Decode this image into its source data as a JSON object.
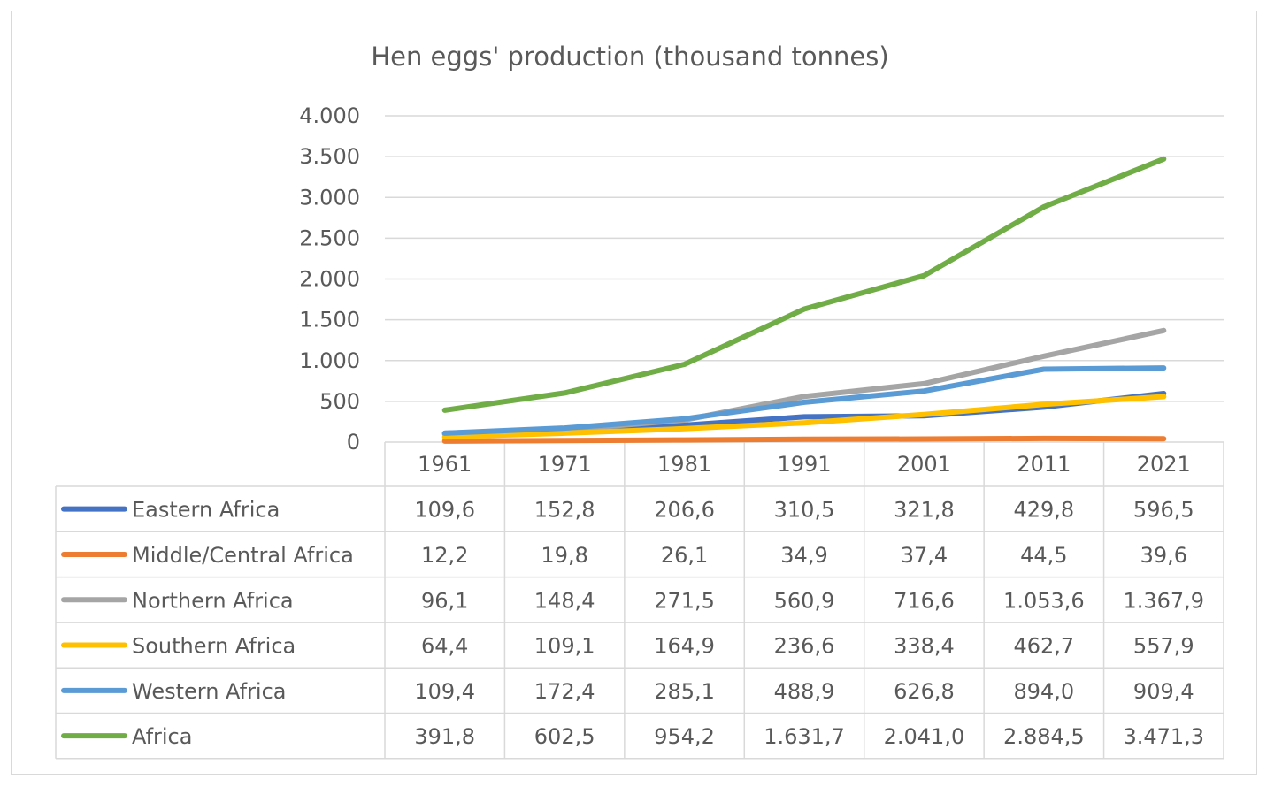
{
  "chart_data": {
    "type": "line",
    "title": "Hen eggs' production (thousand tonnes)",
    "categories": [
      "1961",
      "1971",
      "1981",
      "1991",
      "2001",
      "2011",
      "2021"
    ],
    "ylim": [
      0,
      4000
    ],
    "yticks": [
      0,
      500,
      1000,
      1500,
      2000,
      2500,
      3000,
      3500,
      4000
    ],
    "ytick_labels": [
      "0",
      "500",
      "1.000",
      "1.500",
      "2.000",
      "2.500",
      "3.000",
      "3.500",
      "4.000"
    ],
    "grid": true,
    "legend": "data table below chart",
    "series": [
      {
        "name": "Eastern Africa",
        "color": "#4472c4",
        "values": [
          109.6,
          152.8,
          206.6,
          310.5,
          321.8,
          429.8,
          596.5
        ],
        "labels": [
          "109,6",
          "152,8",
          "206,6",
          "310,5",
          "321,8",
          "429,8",
          "596,5"
        ]
      },
      {
        "name": "Middle/Central Africa",
        "color": "#ed7d31",
        "values": [
          12.2,
          19.8,
          26.1,
          34.9,
          37.4,
          44.5,
          39.6
        ],
        "labels": [
          "12,2",
          "19,8",
          "26,1",
          "34,9",
          "37,4",
          "44,5",
          "39,6"
        ]
      },
      {
        "name": "Northern Africa",
        "color": "#a5a5a5",
        "values": [
          96.1,
          148.4,
          271.5,
          560.9,
          716.6,
          1053.6,
          1367.9
        ],
        "labels": [
          "96,1",
          "148,4",
          "271,5",
          "560,9",
          "716,6",
          "1.053,6",
          "1.367,9"
        ]
      },
      {
        "name": "Southern Africa",
        "color": "#ffc000",
        "values": [
          64.4,
          109.1,
          164.9,
          236.6,
          338.4,
          462.7,
          557.9
        ],
        "labels": [
          "64,4",
          "109,1",
          "164,9",
          "236,6",
          "338,4",
          "462,7",
          "557,9"
        ]
      },
      {
        "name": "Western Africa",
        "color": "#5b9bd5",
        "values": [
          109.4,
          172.4,
          285.1,
          488.9,
          626.8,
          894.0,
          909.4
        ],
        "labels": [
          "109,4",
          "172,4",
          "285,1",
          "488,9",
          "626,8",
          "894,0",
          "909,4"
        ]
      },
      {
        "name": "Africa",
        "color": "#70ad47",
        "values": [
          391.8,
          602.5,
          954.2,
          1631.7,
          2041.0,
          2884.5,
          3471.3
        ],
        "labels": [
          "391,8",
          "602,5",
          "954,2",
          "1.631,7",
          "2.041,0",
          "2.884,5",
          "3.471,3"
        ]
      }
    ]
  }
}
